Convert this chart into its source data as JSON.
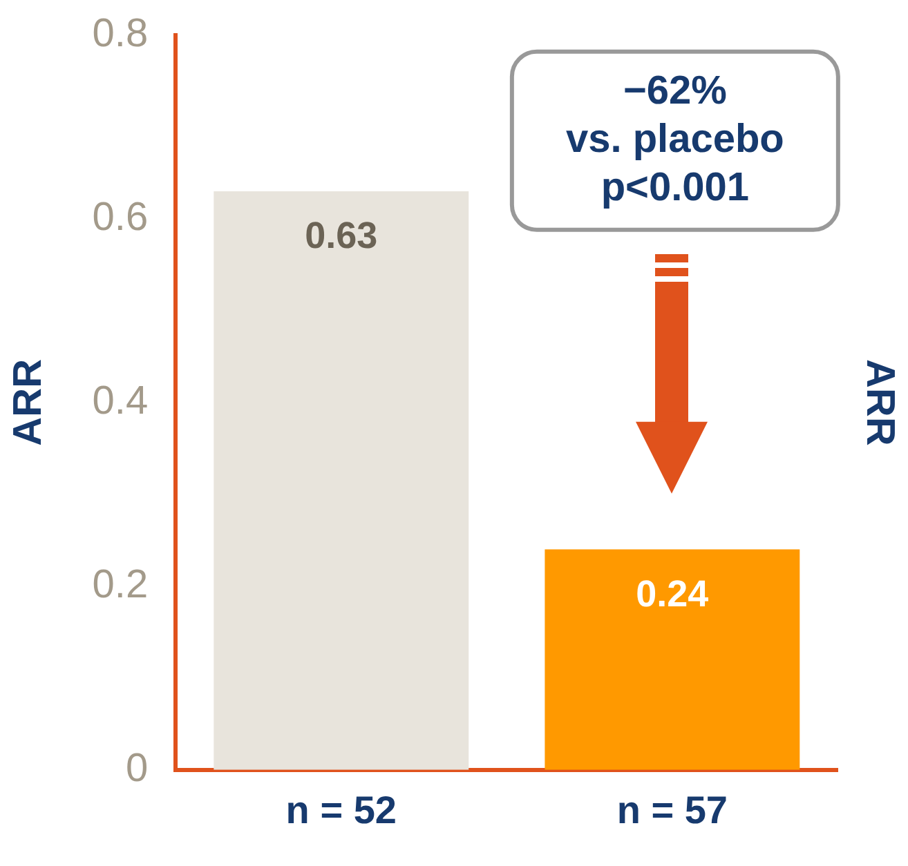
{
  "chart_data": {
    "type": "bar",
    "categories": [
      "n = 52",
      "n = 57"
    ],
    "values": [
      0.63,
      0.24
    ],
    "colors": [
      "#e8e4dc",
      "#ff9900"
    ],
    "ylim": [
      0,
      0.8
    ],
    "yticks": [
      0,
      0.2,
      0.4,
      0.6,
      0.8
    ],
    "ylabel": "ARR",
    "y2label": "ARR",
    "grid": false,
    "legend": false,
    "data_labels": true,
    "annotations": [
      "−62%\nvs. placebo\np<0.001"
    ]
  }
}
